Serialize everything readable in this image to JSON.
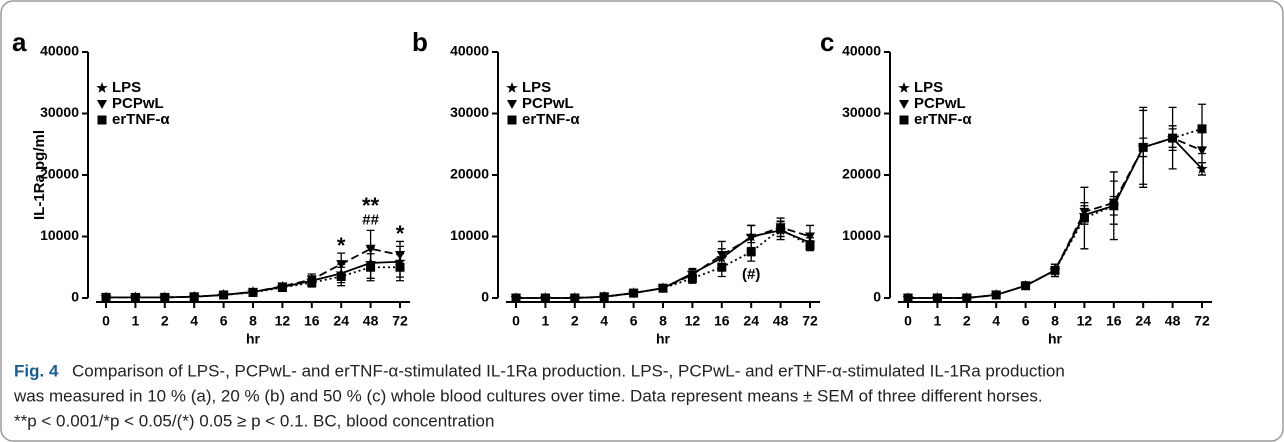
{
  "chart_data": [
    {
      "type": "line",
      "panel": "a",
      "ylabel": "IL-1Ra pg/ml",
      "xlabel": "hr",
      "categories": [
        "0",
        "1",
        "2",
        "4",
        "6",
        "8",
        "12",
        "16",
        "24",
        "48",
        "72"
      ],
      "ylim": [
        0,
        40000
      ],
      "yticks": [
        0,
        10000,
        20000,
        30000,
        40000
      ],
      "series": [
        {
          "name": "LPS",
          "color": "#000000",
          "line_style": "solid",
          "marker": "star",
          "values": [
            100,
            100,
            100,
            200,
            500,
            1000,
            1800,
            2800,
            4000,
            5700,
            5900
          ],
          "errors": [
            50,
            50,
            50,
            100,
            200,
            300,
            500,
            800,
            1500,
            2500,
            2500
          ]
        },
        {
          "name": "PCPwL",
          "color": "#000000",
          "line_style": "dashed",
          "marker": "triangle-down",
          "values": [
            100,
            100,
            100,
            200,
            500,
            1000,
            1900,
            3000,
            5500,
            8000,
            7000
          ],
          "errors": [
            50,
            50,
            50,
            100,
            200,
            300,
            500,
            900,
            1800,
            3000,
            2200
          ]
        },
        {
          "name": "erTNF-α",
          "color": "#000000",
          "line_style": "dotted",
          "marker": "square",
          "values": [
            100,
            100,
            100,
            200,
            500,
            900,
            1700,
            2500,
            3500,
            5000,
            5000
          ],
          "errors": [
            50,
            50,
            50,
            100,
            200,
            300,
            400,
            700,
            1500,
            2200,
            2200
          ]
        }
      ],
      "annotations": [
        {
          "text": "*",
          "category": "24",
          "position": "above"
        },
        {
          "text": "##",
          "category": "48",
          "position": "above"
        },
        {
          "text": "**",
          "category": "48",
          "position": "above"
        },
        {
          "text": "*",
          "category": "72",
          "position": "above"
        }
      ]
    },
    {
      "type": "line",
      "panel": "b",
      "xlabel": "hr",
      "categories": [
        "0",
        "1",
        "2",
        "4",
        "6",
        "8",
        "12",
        "16",
        "24",
        "48",
        "72"
      ],
      "ylim": [
        0,
        40000
      ],
      "yticks": [
        0,
        10000,
        20000,
        30000,
        40000
      ],
      "series": [
        {
          "name": "LPS",
          "color": "#000000",
          "line_style": "solid",
          "marker": "star",
          "values": [
            0,
            0,
            0,
            200,
            800,
            1600,
            4000,
            6500,
            10000,
            11000,
            9000
          ],
          "errors": [
            50,
            50,
            50,
            100,
            200,
            300,
            800,
            1500,
            1800,
            1500,
            800
          ]
        },
        {
          "name": "PCPwL",
          "color": "#000000",
          "line_style": "dashed",
          "marker": "triangle-down",
          "values": [
            0,
            0,
            0,
            200,
            800,
            1600,
            3800,
            7000,
            9800,
            11500,
            10000
          ],
          "errors": [
            50,
            50,
            50,
            100,
            200,
            300,
            800,
            2200,
            2000,
            1500,
            1800
          ]
        },
        {
          "name": "erTNF-α",
          "color": "#000000",
          "line_style": "dotted",
          "marker": "square",
          "values": [
            0,
            0,
            0,
            200,
            800,
            1600,
            3200,
            5000,
            7500,
            11200,
            8500
          ],
          "errors": [
            50,
            50,
            50,
            100,
            200,
            300,
            800,
            1500,
            1500,
            1200,
            800
          ]
        }
      ],
      "annotations": [
        {
          "text": "(#)",
          "category": "24",
          "position": "below"
        }
      ]
    },
    {
      "type": "line",
      "panel": "c",
      "xlabel": "hr",
      "categories": [
        "0",
        "1",
        "2",
        "4",
        "6",
        "8",
        "12",
        "16",
        "24",
        "48",
        "72"
      ],
      "ylim": [
        0,
        40000
      ],
      "yticks": [
        0,
        10000,
        20000,
        30000,
        40000
      ],
      "series": [
        {
          "name": "LPS",
          "color": "#000000",
          "line_style": "solid",
          "marker": "star",
          "values": [
            0,
            0,
            0,
            500,
            2000,
            4500,
            13500,
            15000,
            24500,
            26000,
            21000
          ],
          "errors": [
            50,
            50,
            50,
            200,
            500,
            1000,
            1500,
            1500,
            1500,
            1500,
            1000
          ]
        },
        {
          "name": "PCPwL",
          "color": "#000000",
          "line_style": "dashed",
          "marker": "triangle-down",
          "values": [
            0,
            0,
            0,
            500,
            2000,
            4500,
            14000,
            15500,
            24500,
            26000,
            24000
          ],
          "errors": [
            50,
            50,
            50,
            200,
            500,
            1000,
            1500,
            3500,
            6500,
            5000,
            4000
          ]
        },
        {
          "name": "erTNF-α",
          "color": "#000000",
          "line_style": "dotted",
          "marker": "square",
          "values": [
            0,
            0,
            0,
            500,
            2000,
            4500,
            13000,
            15000,
            24500,
            26000,
            27500
          ],
          "errors": [
            50,
            50,
            50,
            200,
            500,
            1000,
            5000,
            5500,
            6000,
            2000,
            4000
          ]
        }
      ],
      "annotations": []
    }
  ],
  "caption": {
    "label": "Fig. 4",
    "lines": [
      "Comparison of LPS-, PCPwL- and erTNF-α-stimulated IL-1Ra production. LPS-, PCPwL- and erTNF-α-stimulated IL-1Ra production",
      "was measured in 10 % (a), 20 % (b) and 50 % (c) whole blood cultures over time. Data represent means ± SEM of three different horses.",
      "**p < 0.001/*p < 0.05/(*) 0.05 ≥ p < 0.1. BC, blood concentration"
    ]
  }
}
